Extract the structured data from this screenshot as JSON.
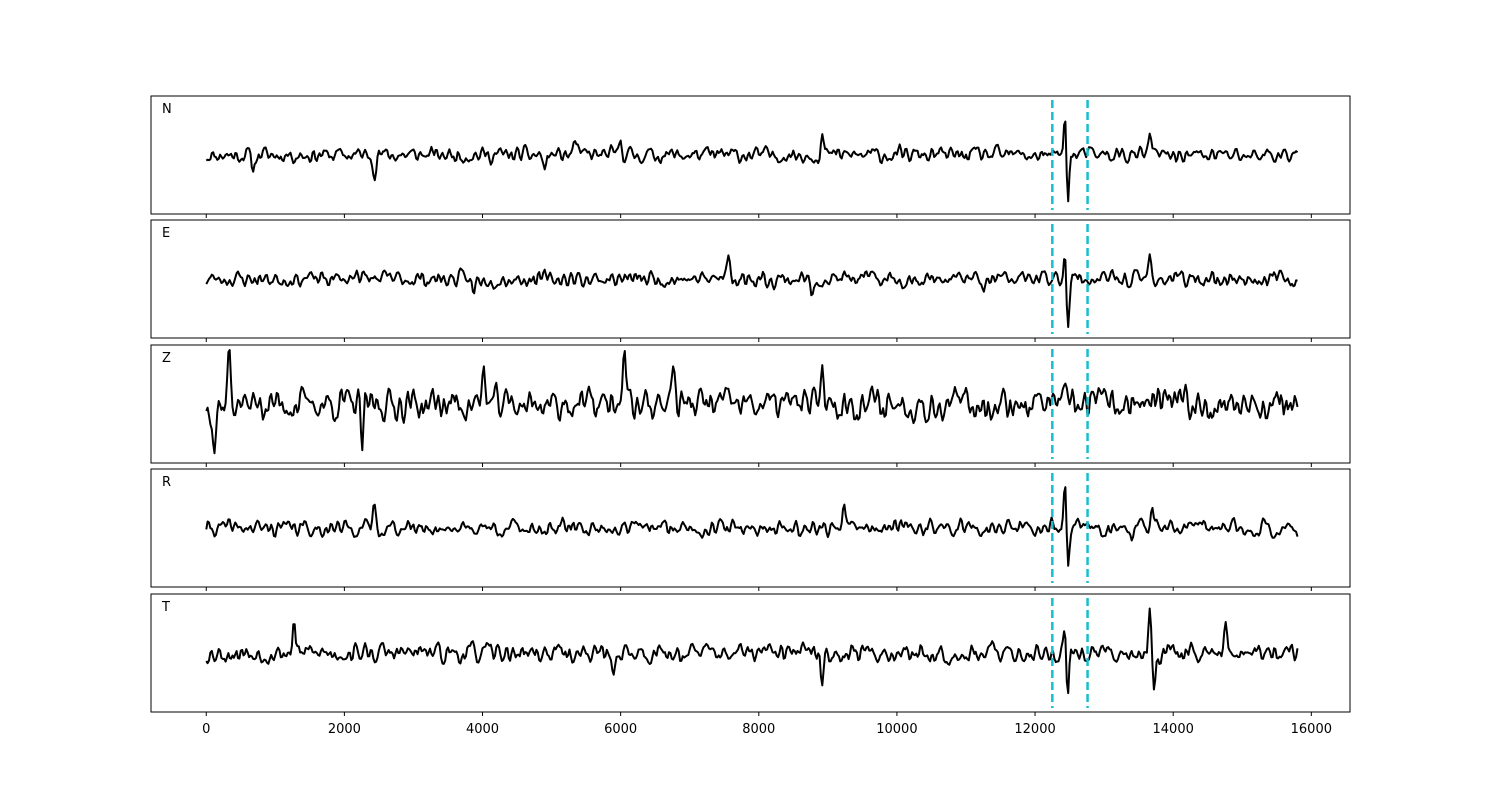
{
  "chart_data": {
    "type": "line",
    "xlim": [
      -800,
      16560
    ],
    "x_ticks": [
      0,
      2000,
      4000,
      6000,
      8000,
      10000,
      12000,
      14000,
      16000
    ],
    "x_tick_labels": [
      "0",
      "2000",
      "4000",
      "6000",
      "8000",
      "10000",
      "12000",
      "14000",
      "16000"
    ],
    "x_range": [
      0,
      15800
    ],
    "marker_lines": [
      12250,
      12760
    ],
    "marker_color": "#17becf",
    "trace_color": "#000000",
    "grid": false,
    "panels": [
      {
        "label": "N",
        "seed": 11,
        "amp": 0.18,
        "ylim": [
          -1,
          1
        ],
        "spikes": [
          [
            12440,
            0.88
          ],
          [
            12470,
            -0.92
          ],
          [
            13660,
            0.38
          ],
          [
            8920,
            0.32
          ],
          [
            6000,
            0.28
          ],
          [
            5340,
            0.28
          ],
          [
            4900,
            -0.26
          ],
          [
            680,
            -0.24
          ],
          [
            2440,
            -0.26
          ]
        ]
      },
      {
        "label": "E",
        "seed": 23,
        "amp": 0.18,
        "ylim": [
          -1,
          1
        ],
        "spikes": [
          [
            12440,
            0.72
          ],
          [
            12470,
            -0.94
          ],
          [
            13660,
            0.38
          ],
          [
            7560,
            0.44
          ],
          [
            8770,
            -0.32
          ],
          [
            11260,
            -0.28
          ],
          [
            3870,
            -0.28
          ],
          [
            2180,
            0.24
          ]
        ]
      },
      {
        "label": "Z",
        "seed": 37,
        "amp": 0.36,
        "ylim": [
          -1,
          1
        ],
        "spikes": [
          [
            330,
            0.9
          ],
          [
            120,
            -0.72
          ],
          [
            6050,
            0.95
          ],
          [
            6760,
            0.82
          ],
          [
            2260,
            -0.75
          ],
          [
            8920,
            0.72
          ],
          [
            4020,
            0.6
          ]
        ]
      },
      {
        "label": "R",
        "seed": 41,
        "amp": 0.18,
        "ylim": [
          -1,
          1
        ],
        "spikes": [
          [
            12440,
            0.92
          ],
          [
            12470,
            -0.92
          ],
          [
            13700,
            0.34
          ],
          [
            2430,
            0.4
          ],
          [
            9230,
            0.36
          ],
          [
            13400,
            -0.28
          ]
        ]
      },
      {
        "label": "T",
        "seed": 53,
        "amp": 0.2,
        "ylim": [
          -1,
          1
        ],
        "spikes": [
          [
            12440,
            0.68
          ],
          [
            12470,
            -0.95
          ],
          [
            13660,
            0.72
          ],
          [
            13720,
            -0.6
          ],
          [
            14760,
            0.5
          ],
          [
            1270,
            0.52
          ],
          [
            8920,
            -0.6
          ],
          [
            5890,
            -0.42
          ]
        ]
      }
    ]
  }
}
